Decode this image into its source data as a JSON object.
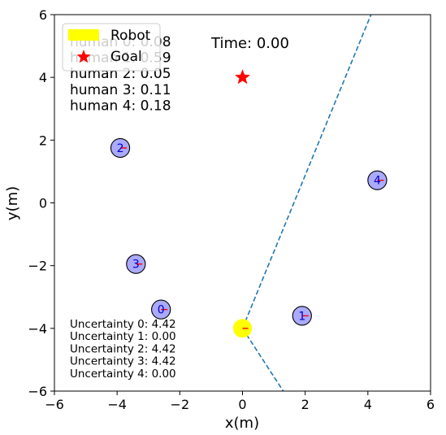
{
  "chart_data": {
    "type": "scatter",
    "xlabel": "x(m)",
    "ylabel": "y(m)",
    "xlim": [
      -6,
      6
    ],
    "ylim": [
      -6,
      6
    ],
    "xticks": [
      "−6",
      "−4",
      "−2",
      "0",
      "2",
      "4",
      "6"
    ],
    "yticks": [
      "−6",
      "−4",
      "−2",
      "0",
      "2",
      "4",
      "6"
    ],
    "xtick_values": [
      -6,
      -4,
      -2,
      0,
      2,
      4,
      6
    ],
    "ytick_values": [
      -6,
      -4,
      -2,
      0,
      2,
      4,
      6
    ],
    "time_label": "Time: 0.00",
    "legend": [
      {
        "label": "Robot",
        "marker": "rect",
        "color": "#ffff00"
      },
      {
        "label": "Goal",
        "marker": "star",
        "color": "#ff0000"
      }
    ],
    "human_probs": [
      "human 0: 0.08",
      "human 1: 0.59",
      "human 2: 0.05",
      "human 3: 0.11",
      "human 4: 0.18"
    ],
    "uncertainties": [
      "Uncertainty 0: 4.42",
      "Uncertainty 1: 0.00",
      "Uncertainty 2: 4.42",
      "Uncertainty 3: 4.42",
      "Uncertainty 4: 0.00"
    ],
    "robot": {
      "x": 0.0,
      "y": -4.0,
      "radius": 0.3,
      "color": "#ffff00"
    },
    "goal": {
      "x": 0.0,
      "y": 4.0,
      "color": "#ff0000"
    },
    "humans": [
      {
        "id": "0",
        "x": -2.6,
        "y": -3.4,
        "radius": 0.3,
        "color": "#aaaaff"
      },
      {
        "id": "1",
        "x": 1.9,
        "y": -3.6,
        "radius": 0.3,
        "color": "#aaaaff"
      },
      {
        "id": "2",
        "x": -3.9,
        "y": 1.75,
        "radius": 0.3,
        "color": "#aaaaff"
      },
      {
        "id": "3",
        "x": -3.4,
        "y": -1.95,
        "radius": 0.3,
        "color": "#aaaaff"
      },
      {
        "id": "4",
        "x": 4.3,
        "y": 0.72,
        "radius": 0.3,
        "color": "#aaaaff"
      }
    ],
    "boundary_lines": [
      {
        "x": [
          0.0,
          4.1
        ],
        "y": [
          -4.0,
          6.0
        ],
        "color": "#1f77b4",
        "style": "dashed"
      },
      {
        "x": [
          0.0,
          1.3
        ],
        "y": [
          -4.0,
          -6.0
        ],
        "color": "#1f77b4",
        "style": "dashed"
      }
    ],
    "heading_color": "#ff0000"
  }
}
